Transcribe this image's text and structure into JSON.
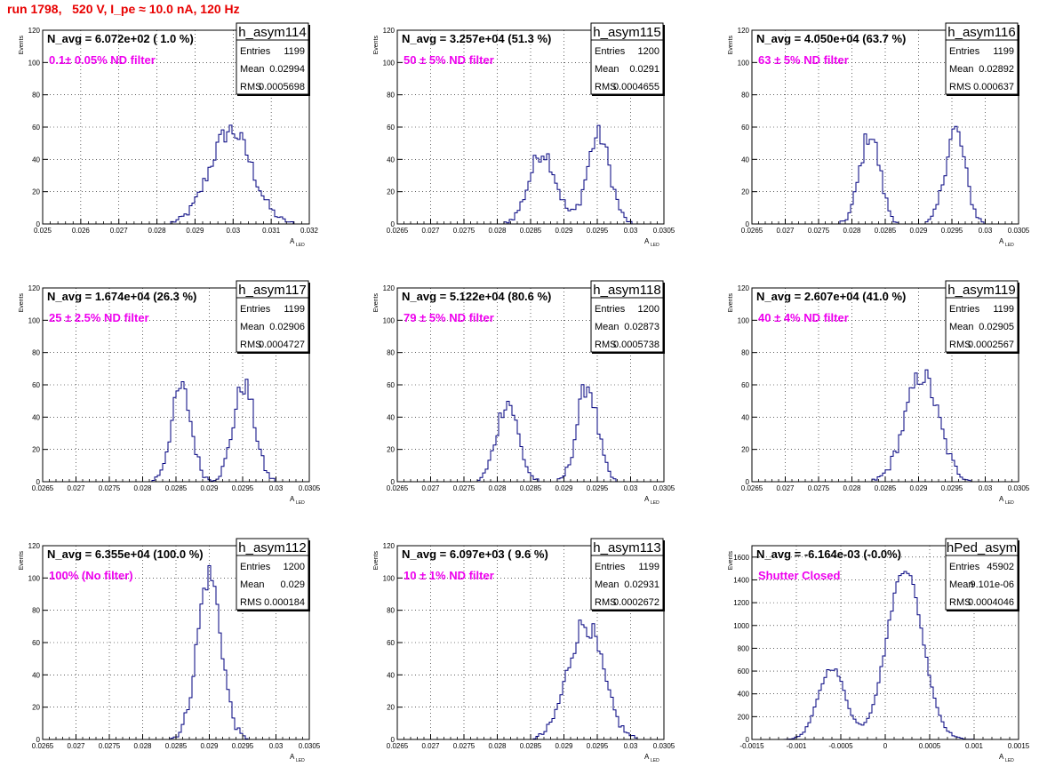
{
  "header": "run 1798,   520 V, I_pe ≈ 10.0 nA, 120 Hz",
  "colors": {
    "hist": "#00007f",
    "navg": "#000000",
    "filter": "#ee00ee",
    "header": "#e80000"
  },
  "chart_data": [
    {
      "type": "histogram",
      "name": "h_asym114",
      "navg": "N_avg = 6.072e+02 ( 1.0 %)",
      "filter": "0.1± 0.05% ND filter",
      "stats": {
        "entries": "1199",
        "mean": "0.02994",
        "rms": "0.0005698"
      },
      "xlim": [
        0.025,
        0.032
      ],
      "ylim": [
        0,
        120
      ],
      "xticks": [
        "0.025",
        "0.026",
        "0.027",
        "0.028",
        "0.029",
        "0.03",
        "0.031",
        "0.032"
      ],
      "yticks": [
        "0",
        "20",
        "40",
        "60",
        "80",
        "100",
        "120"
      ],
      "ylabel": "Events",
      "xlabel": "A",
      "xlabel_sub": "LED",
      "peaks": [
        {
          "mu": 0.02994,
          "sigma": 0.00055,
          "amp": 58
        }
      ]
    },
    {
      "type": "histogram",
      "name": "h_asym115",
      "navg": "N_avg = 3.257e+04 (51.3 %)",
      "filter": "50 ± 5% ND filter",
      "stats": {
        "entries": "1200",
        "mean": "0.0291",
        "rms": "0.0004655"
      },
      "xlim": [
        0.0265,
        0.0305
      ],
      "ylim": [
        0,
        120
      ],
      "xticks": [
        "0.0265",
        "0.027",
        "0.0275",
        "0.028",
        "0.0285",
        "0.029",
        "0.0295",
        "0.03",
        "0.0305"
      ],
      "yticks": [
        "0",
        "20",
        "40",
        "60",
        "80",
        "100",
        "120"
      ],
      "ylabel": "Events",
      "xlabel": "A",
      "xlabel_sub": "LED",
      "peaks": [
        {
          "mu": 0.02868,
          "sigma": 0.0002,
          "amp": 45
        },
        {
          "mu": 0.02952,
          "sigma": 0.00017,
          "amp": 55
        }
      ]
    },
    {
      "type": "histogram",
      "name": "h_asym116",
      "navg": "N_avg = 4.050e+04 (63.7 %)",
      "filter": "63 ± 5% ND filter",
      "stats": {
        "entries": "1199",
        "mean": "0.02892",
        "rms": "0.000637"
      },
      "xlim": [
        0.0265,
        0.0305
      ],
      "ylim": [
        0,
        120
      ],
      "xticks": [
        "0.0265",
        "0.027",
        "0.0275",
        "0.028",
        "0.0285",
        "0.029",
        "0.0295",
        "0.03",
        "0.0305"
      ],
      "yticks": [
        "0",
        "20",
        "40",
        "60",
        "80",
        "100",
        "120"
      ],
      "ylabel": "Events",
      "xlabel": "A",
      "xlabel_sub": "LED",
      "peaks": [
        {
          "mu": 0.02827,
          "sigma": 0.00015,
          "amp": 56
        },
        {
          "mu": 0.02955,
          "sigma": 0.00015,
          "amp": 58
        }
      ]
    },
    {
      "type": "histogram",
      "name": "h_asym117",
      "navg": "N_avg = 1.674e+04 (26.3 %)",
      "filter": "25 ± 2.5% ND filter",
      "stats": {
        "entries": "1199",
        "mean": "0.02906",
        "rms": "0.0004727"
      },
      "xlim": [
        0.0265,
        0.0305
      ],
      "ylim": [
        0,
        120
      ],
      "xticks": [
        "0.0265",
        "0.027",
        "0.0275",
        "0.028",
        "0.0285",
        "0.029",
        "0.0295",
        "0.03",
        "0.0305"
      ],
      "yticks": [
        "0",
        "20",
        "40",
        "60",
        "80",
        "100",
        "120"
      ],
      "ylabel": "Events",
      "xlabel": "A",
      "xlabel_sub": "LED",
      "peaks": [
        {
          "mu": 0.02858,
          "sigma": 0.00015,
          "amp": 58
        },
        {
          "mu": 0.02952,
          "sigma": 0.00016,
          "amp": 60
        }
      ]
    },
    {
      "type": "histogram",
      "name": "h_asym118",
      "navg": "N_avg = 5.122e+04 (80.6 %)",
      "filter": "79 ± 5% ND filter",
      "stats": {
        "entries": "1200",
        "mean": "0.02873",
        "rms": "0.0005738"
      },
      "xlim": [
        0.0265,
        0.0305
      ],
      "ylim": [
        0,
        120
      ],
      "xticks": [
        "0.0265",
        "0.027",
        "0.0275",
        "0.028",
        "0.0285",
        "0.029",
        "0.0295",
        "0.03",
        "0.0305"
      ],
      "yticks": [
        "0",
        "20",
        "40",
        "60",
        "80",
        "100",
        "120"
      ],
      "ylabel": "Events",
      "xlabel": "A",
      "xlabel_sub": "LED",
      "peaks": [
        {
          "mu": 0.02815,
          "sigma": 0.00016,
          "amp": 50
        },
        {
          "mu": 0.02935,
          "sigma": 0.00015,
          "amp": 60
        }
      ]
    },
    {
      "type": "histogram",
      "name": "h_asym119",
      "navg": "N_avg = 2.607e+04 (41.0 %)",
      "filter": "40 ± 4% ND filter",
      "stats": {
        "entries": "1199",
        "mean": "0.02905",
        "rms": "0.0002567"
      },
      "xlim": [
        0.0265,
        0.0305
      ],
      "ylim": [
        0,
        120
      ],
      "xticks": [
        "0.0265",
        "0.027",
        "0.0275",
        "0.028",
        "0.0285",
        "0.029",
        "0.0295",
        "0.03",
        "0.0305"
      ],
      "yticks": [
        "0",
        "20",
        "40",
        "60",
        "80",
        "100",
        "120"
      ],
      "ylabel": "Events",
      "xlabel": "A",
      "xlabel_sub": "LED",
      "peaks": [
        {
          "mu": 0.02905,
          "sigma": 0.00025,
          "amp": 66
        }
      ]
    },
    {
      "type": "histogram",
      "name": "h_asym112",
      "navg": "N_avg = 6.355e+04 (100.0 %)",
      "filter": "100% (No filter)",
      "stats": {
        "entries": "1200",
        "mean": "0.029",
        "rms": "0.000184"
      },
      "xlim": [
        0.0265,
        0.0305
      ],
      "ylim": [
        0,
        120
      ],
      "xticks": [
        "0.0265",
        "0.027",
        "0.0275",
        "0.028",
        "0.0285",
        "0.029",
        "0.0295",
        "0.03",
        "0.0305"
      ],
      "yticks": [
        "0",
        "20",
        "40",
        "60",
        "80",
        "100",
        "120"
      ],
      "ylabel": "Events",
      "xlabel": "A",
      "xlabel_sub": "LED",
      "peaks": [
        {
          "mu": 0.029,
          "sigma": 0.00018,
          "amp": 102
        }
      ]
    },
    {
      "type": "histogram",
      "name": "h_asym113",
      "navg": "N_avg = 6.097e+03 ( 9.6 %)",
      "filter": "10 ± 1% ND filter",
      "stats": {
        "entries": "1199",
        "mean": "0.02931",
        "rms": "0.0002672"
      },
      "xlim": [
        0.0265,
        0.0305
      ],
      "ylim": [
        0,
        120
      ],
      "xticks": [
        "0.0265",
        "0.027",
        "0.0275",
        "0.028",
        "0.0285",
        "0.029",
        "0.0295",
        "0.03",
        "0.0305"
      ],
      "yticks": [
        "0",
        "20",
        "40",
        "60",
        "80",
        "100",
        "120"
      ],
      "ylabel": "Events",
      "xlabel": "A",
      "xlabel_sub": "LED",
      "peaks": [
        {
          "mu": 0.02932,
          "sigma": 0.00026,
          "amp": 72
        }
      ]
    },
    {
      "type": "histogram",
      "name": "hPed_asym",
      "navg": "N_avg = -6.164e-03 (-0.0%)",
      "filter": "Shutter Closed",
      "stats": {
        "entries": "45902",
        "mean": "9.101e-06",
        "rms": "0.0004046"
      },
      "xlim": [
        -0.0015,
        0.0015
      ],
      "ylim": [
        0,
        1700
      ],
      "xticks": [
        "-0.0015",
        "-0.001",
        "-0.0005",
        "0",
        "0.0005",
        "0.001",
        "0.0015"
      ],
      "yticks": [
        "0",
        "200",
        "400",
        "600",
        "800",
        "1000",
        "1200",
        "1400",
        "1600"
      ],
      "ylabel": "Events",
      "xlabel": "A",
      "xlabel_sub": "LED",
      "peaks": [
        {
          "mu": -0.0006,
          "sigma": 0.00015,
          "amp": 630
        },
        {
          "mu": 0.00022,
          "sigma": 0.0002,
          "amp": 1500
        }
      ]
    }
  ]
}
